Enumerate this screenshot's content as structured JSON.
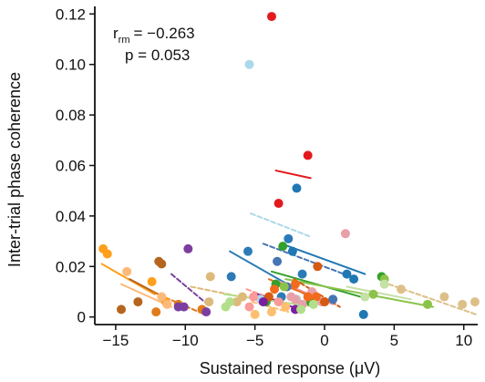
{
  "chart_data": {
    "type": "scatter",
    "xlabel": "Sustained response (μV)",
    "ylabel": "Inter-trial phase coherence",
    "xlim": [
      -16.5,
      11
    ],
    "ylim": [
      -0.003,
      0.123
    ],
    "x_ticks": [
      -15,
      -10,
      -5,
      0,
      5,
      10
    ],
    "y_ticks": [
      0,
      0.02,
      0.04,
      0.06,
      0.08,
      0.1,
      0.12
    ],
    "x_tick_labels": [
      "−15",
      "−10",
      "−5",
      "0",
      "5",
      "10"
    ],
    "y_tick_labels": [
      "0",
      "0.02",
      "0.04",
      "0.06",
      "0.08",
      "0.10",
      "0.12"
    ],
    "grid": false,
    "stats": {
      "r_symbol": "r",
      "r_subscript": "rm",
      "r_value": "= −0.263",
      "p_text": "p = 0.053"
    },
    "subjects": [
      {
        "color": "#ff9f1c",
        "style": "solid",
        "points": [
          [
            -15.9,
            0.027
          ],
          [
            -15.6,
            0.025
          ],
          [
            -12.4,
            0.014
          ],
          [
            -11.4,
            0.006
          ]
        ],
        "fit": [
          [
            -16.0,
            0.021
          ],
          [
            -12.2,
            0.009
          ]
        ]
      },
      {
        "color": "#b5651d",
        "style": "solid",
        "points": [
          [
            -14.6,
            0.003
          ],
          [
            -13.4,
            0.006
          ],
          [
            -11.9,
            0.022
          ],
          [
            -11.7,
            0.021
          ]
        ],
        "fit": [
          [
            -14.0,
            0.015
          ],
          [
            -11.6,
            0.008
          ]
        ]
      },
      {
        "color": "#fdb97a",
        "style": "solid",
        "points": [
          [
            -14.2,
            0.018
          ],
          [
            -11.7,
            0.008
          ],
          [
            -11.3,
            0.005
          ]
        ],
        "fit": [
          [
            -14.6,
            0.013
          ],
          [
            -11.0,
            0.004
          ]
        ]
      },
      {
        "color": "#e07b1a",
        "style": "dashed",
        "points": [
          [
            -12.1,
            0.002
          ],
          [
            -8.8,
            0.003
          ],
          [
            -10.5,
            0.005
          ]
        ],
        "fit": [
          [
            -12.4,
            0.01
          ],
          [
            -8.6,
            0.001
          ]
        ]
      },
      {
        "color": "#7b3fa0",
        "style": "dashed",
        "points": [
          [
            -9.8,
            0.027
          ],
          [
            -10.5,
            0.004
          ],
          [
            -8.5,
            0.002
          ],
          [
            -10.1,
            0.004
          ]
        ],
        "fit": [
          [
            -11.0,
            0.017
          ],
          [
            -8.4,
            0.005
          ]
        ]
      },
      {
        "color": "#ddb97a",
        "style": "dashed",
        "points": [
          [
            -8.2,
            0.016
          ],
          [
            -8.3,
            0.006
          ],
          [
            -6.3,
            0.006
          ],
          [
            -5.9,
            0.008
          ]
        ],
        "fit": [
          [
            -9.6,
            0.012
          ],
          [
            -6.0,
            0.008
          ]
        ]
      },
      {
        "color": "#2c7bb6",
        "style": "solid",
        "points": [
          [
            -5.5,
            0.026
          ],
          [
            -6.7,
            0.016
          ],
          [
            -2.6,
            0.031
          ],
          [
            -1.6,
            0.017
          ],
          [
            -3.1,
            0.008
          ]
        ],
        "fit": [
          [
            -6.8,
            0.026
          ],
          [
            -1.4,
            0.009
          ]
        ]
      },
      {
        "color": "#abd9e9",
        "style": "dashed",
        "points": [
          [
            -5.4,
            0.1
          ],
          [
            -4.6,
            0.007
          ],
          [
            -2.0,
            0.007
          ]
        ],
        "fit": [
          [
            -5.3,
            0.041
          ],
          [
            -1.1,
            0.032
          ]
        ]
      },
      {
        "color": "#e31a1c",
        "style": "solid",
        "points": [
          [
            -3.8,
            0.119
          ],
          [
            -1.2,
            0.064
          ],
          [
            -3.3,
            0.045
          ]
        ],
        "fit": [
          [
            -3.5,
            0.058
          ],
          [
            -1.0,
            0.055
          ]
        ]
      },
      {
        "color": "#1f78b4",
        "style": "solid",
        "points": [
          [
            -2.0,
            0.051
          ],
          [
            -2.3,
            0.026
          ],
          [
            2.1,
            0.015
          ],
          [
            1.6,
            0.017
          ],
          [
            2.8,
            0.001
          ]
        ],
        "fit": [
          [
            -3.1,
            0.029
          ],
          [
            2.9,
            0.017
          ]
        ]
      },
      {
        "color": "#4575b4",
        "style": "dashed",
        "points": [
          [
            -3.4,
            0.022
          ],
          [
            -2.7,
            0.012
          ],
          [
            -0.9,
            0.008
          ],
          [
            0.6,
            0.007
          ]
        ],
        "fit": [
          [
            -4.4,
            0.029
          ],
          [
            1.4,
            0.017
          ]
        ]
      },
      {
        "color": "#33a02c",
        "style": "solid",
        "points": [
          [
            -3.0,
            0.028
          ],
          [
            -3.5,
            0.013
          ],
          [
            -4.2,
            0.006
          ],
          [
            -1.0,
            0.006
          ],
          [
            4.1,
            0.016
          ]
        ],
        "fit": [
          [
            -3.8,
            0.018
          ],
          [
            2.6,
            0.008
          ]
        ]
      },
      {
        "color": "#8bc34a",
        "style": "solid",
        "points": [
          [
            -2.9,
            0.012
          ],
          [
            3.5,
            0.009
          ],
          [
            4.3,
            0.015
          ],
          [
            7.4,
            0.005
          ]
        ],
        "fit": [
          [
            -2.8,
            0.015
          ],
          [
            7.8,
            0.004
          ]
        ]
      },
      {
        "color": "#c5e1a5",
        "style": "solid",
        "points": [
          [
            2.9,
            0.008
          ],
          [
            4.3,
            0.013
          ]
        ],
        "fit": [
          [
            1.6,
            0.012
          ],
          [
            6.2,
            0.007
          ]
        ]
      },
      {
        "color": "#ddc089",
        "style": "dashed",
        "points": [
          [
            8.6,
            0.008
          ],
          [
            9.9,
            0.005
          ],
          [
            10.8,
            0.006
          ],
          [
            5.5,
            0.011
          ]
        ],
        "fit": [
          [
            4.6,
            0.013
          ],
          [
            10.9,
            0.001
          ]
        ]
      },
      {
        "color": "#e8a0a8",
        "style": "solid",
        "points": [
          [
            1.5,
            0.033
          ],
          [
            -2.4,
            0.008
          ],
          [
            -2.1,
            0.007
          ],
          [
            -0.2,
            0.006
          ],
          [
            -1.6,
            0.005
          ],
          [
            -0.9,
            0.01
          ]
        ],
        "fit": [
          [
            -3.2,
            0.014
          ],
          [
            0.6,
            0.005
          ]
        ]
      },
      {
        "color": "#f26b1d",
        "style": "solid",
        "points": [
          [
            -2.1,
            0.013
          ],
          [
            -1.2,
            0.008
          ],
          [
            -3.6,
            0.011
          ],
          [
            -0.6,
            0.008
          ]
        ],
        "fit": [
          [
            -4.0,
            0.015
          ],
          [
            -0.4,
            0.007
          ]
        ]
      },
      {
        "color": "#d65a10",
        "style": "dashed",
        "points": [
          [
            -0.5,
            0.02
          ],
          [
            -4.0,
            0.008
          ],
          [
            0.0,
            0.006
          ]
        ],
        "fit": [
          [
            -2.2,
            0.015
          ],
          [
            1.1,
            0.004
          ]
        ]
      },
      {
        "color": "#fb9a99",
        "style": "dashed",
        "points": [
          [
            -5.1,
            0.008
          ],
          [
            -3.3,
            0.006
          ],
          [
            -5.4,
            0.004
          ]
        ],
        "fit": [
          [
            -5.6,
            0.011
          ],
          [
            -2.6,
            0.005
          ]
        ]
      },
      {
        "color": "#7b1fa2",
        "style": "solid",
        "points": [
          [
            -4.4,
            0.006
          ],
          [
            -2.1,
            0.003
          ]
        ],
        "fit": [
          [
            -4.8,
            0.009
          ],
          [
            -1.8,
            0.003
          ]
        ]
      },
      {
        "color": "#b2df8a",
        "style": "solid",
        "points": [
          [
            -7.1,
            0.004
          ],
          [
            -0.8,
            0.005
          ],
          [
            -6.8,
            0.006
          ],
          [
            -1.7,
            0.003
          ]
        ],
        "fit": [
          [
            -7.2,
            0.009
          ],
          [
            -0.6,
            0.004
          ]
        ]
      },
      {
        "color": "#fdbf6f",
        "style": "dashed",
        "points": [
          [
            -2.8,
            0.004
          ],
          [
            -3.8,
            0.002
          ],
          [
            -5.0,
            0.001
          ]
        ],
        "fit": [
          [
            -5.2,
            0.006
          ],
          [
            -2.6,
            0.002
          ]
        ]
      }
    ]
  }
}
